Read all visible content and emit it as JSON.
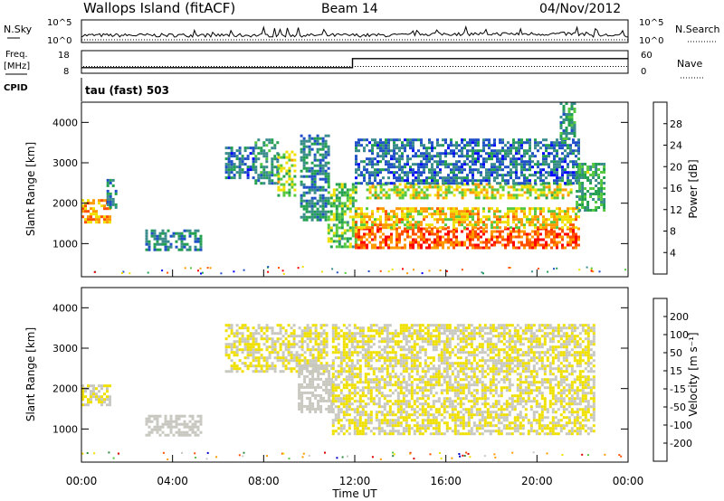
{
  "header": {
    "station": "Wallops Island (fitACF)",
    "beam": "Beam 14",
    "date": "04/Nov/2012"
  },
  "noise_panel": {
    "left_label": "N.Sky",
    "right_label": "N.Search",
    "left_ticks": [
      "10^5",
      "10^0"
    ],
    "right_ticks": [
      "10^5",
      "10^0"
    ]
  },
  "freq_panel": {
    "left_label_top": "Freq.",
    "left_label_units": "[MHz]",
    "right_label": "Nave",
    "left_ticks": [
      "18",
      "8"
    ],
    "right_ticks": [
      "60",
      "0"
    ]
  },
  "cpid_panel": {
    "label": "CPID",
    "text": "tau (fast) 503"
  },
  "power_panel": {
    "ylabel": "Slant Range [km]",
    "yticks": [
      "4000",
      "3000",
      "2000",
      "1000"
    ],
    "colorbar_label": "Power [dB]",
    "colorbar_ticks": [
      "28",
      "24",
      "20",
      "16",
      "12",
      "8",
      "4"
    ]
  },
  "velocity_panel": {
    "ylabel": "Slant Range [km]",
    "yticks": [
      "4000",
      "3000",
      "2000",
      "1000"
    ],
    "colorbar_label": "Velocity [m s⁻¹]",
    "colorbar_ticks": [
      "200",
      "100",
      "50",
      "15",
      "-15",
      "-50",
      "-100",
      "-200"
    ]
  },
  "xaxis": {
    "ticks": [
      "00:00",
      "04:00",
      "08:00",
      "12:00",
      "16:00",
      "20:00",
      "00:00"
    ],
    "label": "Time UT"
  },
  "chart_data": [
    {
      "type": "line",
      "title": "",
      "xlabel": "Time UT",
      "ylabel": "N.Sky",
      "y_scale": "log",
      "ylim": [
        1,
        100000
      ],
      "series": [],
      "note_values": []
    },
    {
      "type": "line",
      "ylabel": "Freq. [MHz]",
      "x_hours": [
        0,
        11.9,
        11.9,
        24
      ],
      "freq_mhz": [
        10.5,
        10.5,
        14.5,
        14.5
      ],
      "ylim": [
        8,
        18
      ],
      "nave_ylim": [
        0,
        60
      ],
      "nave_approx": 18
    },
    {
      "type": "heatmap",
      "title": "Power [dB]",
      "xlim_hours": [
        0,
        24
      ],
      "ylim_km": [
        180,
        4500
      ],
      "clim": [
        0,
        30
      ],
      "colorscale": [
        "#0000ff",
        "#2050c8",
        "#3a8c8c",
        "#22a050",
        "#55c840",
        "#f0e000",
        "#ff9900",
        "#ff5000",
        "#ff0000"
      ],
      "regions": [
        {
          "t": [
            0.0,
            1.2
          ],
          "r": [
            1500,
            2100
          ],
          "level": 22
        },
        {
          "t": [
            1.1,
            1.5
          ],
          "r": [
            1900,
            2600
          ],
          "level": 8
        },
        {
          "t": [
            2.8,
            5.3
          ],
          "r": [
            850,
            1350
          ],
          "level": 8
        },
        {
          "t": [
            6.3,
            7.6
          ],
          "r": [
            2600,
            3400
          ],
          "level": 6
        },
        {
          "t": [
            7.6,
            8.6
          ],
          "r": [
            2500,
            3600
          ],
          "level": 10
        },
        {
          "t": [
            8.6,
            9.4
          ],
          "r": [
            2200,
            3300
          ],
          "level": 16
        },
        {
          "t": [
            9.6,
            10.8
          ],
          "r": [
            1600,
            3700
          ],
          "level": 8
        },
        {
          "t": [
            10.8,
            12.0
          ],
          "r": [
            900,
            2500
          ],
          "level": 14
        },
        {
          "t": [
            12.0,
            21.8
          ],
          "r": [
            900,
            1400
          ],
          "level": 26
        },
        {
          "t": [
            12.0,
            21.8
          ],
          "r": [
            1400,
            1900
          ],
          "level": 20
        },
        {
          "t": [
            12.5,
            21.5
          ],
          "r": [
            2100,
            2500
          ],
          "level": 18
        },
        {
          "t": [
            12.0,
            21.8
          ],
          "r": [
            2500,
            3600
          ],
          "level": 6
        },
        {
          "t": [
            21.7,
            23.0
          ],
          "r": [
            1800,
            3000
          ],
          "level": 12
        },
        {
          "t": [
            21.0,
            21.6
          ],
          "r": [
            3600,
            4500
          ],
          "level": 10
        }
      ]
    },
    {
      "type": "heatmap",
      "title": "Velocity [m s⁻¹]",
      "xlim_hours": [
        0,
        24
      ],
      "ylim_km": [
        180,
        4500
      ],
      "clim": [
        -250,
        250
      ],
      "colorscale": [
        "#dd0000",
        "#ff5000",
        "#ff9900",
        "#f0e000",
        "#c8c8c0",
        "#55c840",
        "#2a8c40",
        "#0000cc"
      ],
      "regions": [
        {
          "t": [
            0.0,
            1.2
          ],
          "r": [
            1600,
            2100
          ],
          "v": 0
        },
        {
          "t": [
            2.8,
            5.3
          ],
          "r": [
            850,
            1350
          ],
          "v": 20
        },
        {
          "t": [
            6.3,
            10.8
          ],
          "r": [
            2400,
            3600
          ],
          "v": 0
        },
        {
          "t": [
            9.5,
            11.0
          ],
          "r": [
            1400,
            2600
          ],
          "v": 40
        },
        {
          "t": [
            11.0,
            22.5
          ],
          "r": [
            900,
            3600
          ],
          "v": 0
        }
      ]
    }
  ]
}
